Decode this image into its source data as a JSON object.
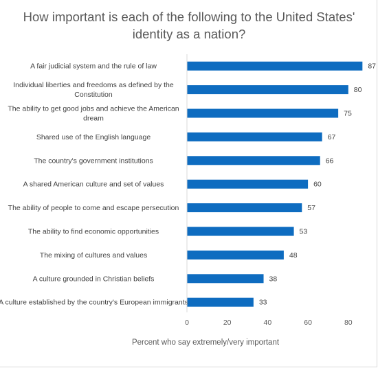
{
  "chart_data": {
    "type": "bar",
    "orientation": "horizontal",
    "title": "How important is each of the following to the United States' identity as a nation?",
    "xlabel": "Percent who say extremely/very important",
    "ylabel": "",
    "xlim": [
      0,
      90
    ],
    "xticks": [
      0,
      20,
      40,
      60,
      80
    ],
    "grid": false,
    "legend": "none",
    "bar_color": "#0e6cc0",
    "categories": [
      [
        "A fair judicial system and the rule of law"
      ],
      [
        "Individual liberties and freedoms as defined by the",
        "Constitution"
      ],
      [
        "The ability to get good jobs and achieve the American",
        "dream"
      ],
      [
        "Shared use of the English language"
      ],
      [
        "The country's government institutions"
      ],
      [
        "A shared American culture and set of values"
      ],
      [
        "The ability of people to come and escape persecution"
      ],
      [
        "The ability to find economic opportunities"
      ],
      [
        "The mixing of cultures and values"
      ],
      [
        "A culture grounded in Christian beliefs"
      ],
      [
        "A culture established by the country's European immigrants"
      ]
    ],
    "values": [
      87,
      80,
      75,
      67,
      66,
      60,
      57,
      53,
      48,
      38,
      33
    ]
  }
}
